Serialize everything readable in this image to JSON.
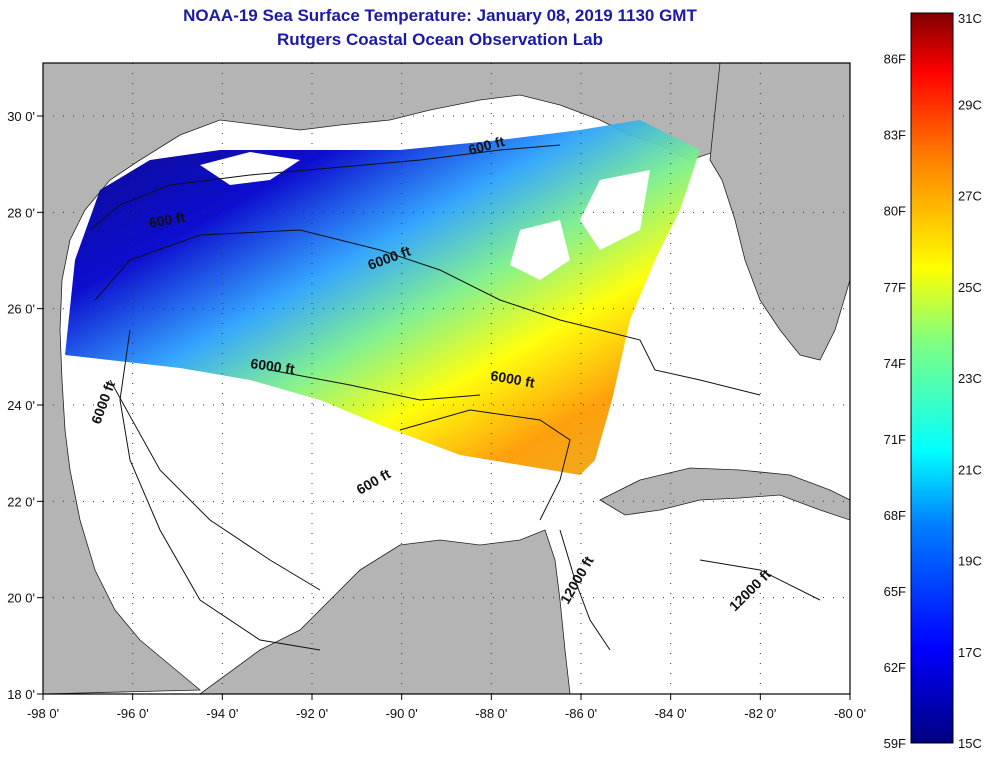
{
  "title": "NOAA-19 Sea Surface Temperature:  January 08, 2019 1130 GMT",
  "subtitle": "Rutgers Coastal Ocean Observation Lab",
  "map": {
    "lon_ticks": [
      "-98 0'",
      "-96 0'",
      "-94 0'",
      "-92 0'",
      "-90 0'",
      "-88 0'",
      "-86 0'",
      "-84 0'",
      "-82 0'",
      "-80 0'"
    ],
    "lat_ticks": [
      "30 0'",
      "28 0'",
      "26 0'",
      "24 0'",
      "22 0'",
      "20 0'",
      "18 0'"
    ],
    "lon_range": [
      -98,
      -80
    ],
    "lat_range": [
      18,
      31.1
    ],
    "land_color": "#b4b4b4",
    "cloud_color": "#ffffff",
    "contour_labels": [
      "600 ft",
      "600 ft",
      "6000 ft",
      "6000 ft",
      "6000 ft",
      "6000 ft",
      "600 ft",
      "12000 ft",
      "12000 ft"
    ]
  },
  "colorbar": {
    "f_labels": [
      "86F",
      "83F",
      "80F",
      "77F",
      "74F",
      "71F",
      "68F",
      "65F",
      "62F",
      "59F"
    ],
    "c_labels": [
      "31C",
      "29C",
      "27C",
      "25C",
      "23C",
      "21C",
      "19C",
      "17C",
      "15C"
    ],
    "range_c": [
      15,
      31
    ],
    "colors": [
      "#00007f",
      "#0000ff",
      "#0080ff",
      "#00ffff",
      "#80ff80",
      "#ffff00",
      "#ff8000",
      "#ff0000",
      "#7f0000"
    ]
  }
}
